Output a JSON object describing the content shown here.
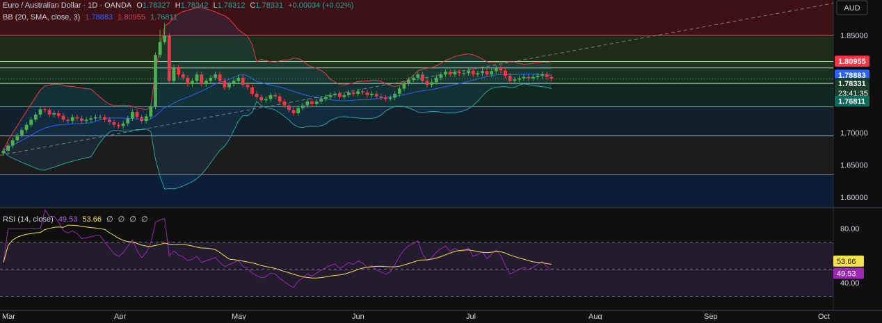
{
  "header": {
    "symbol": "Euro / Australian Dollar · 1D · OANDA",
    "open_label": "O",
    "open": "1.78327",
    "high_label": "H",
    "high": "1.78342",
    "low_label": "L",
    "low": "1.78312",
    "close_label": "C",
    "close": "1.78331",
    "change": "+0.00034 (+0.02%)"
  },
  "bb_legend": {
    "label": "BB (20, SMA, close, 3)",
    "basis": "1.78883",
    "upper": "1.80955",
    "lower": "1.76811"
  },
  "rsi_legend": {
    "label": "RSI (14, close)",
    "rsi": "49.53",
    "ma": "53.66",
    "na1": "∅",
    "na2": "∅",
    "na3": "∅",
    "na4": "∅"
  },
  "price_scale": {
    "currency": "AUD",
    "ticks": [
      "1.85000",
      "1.70000",
      "1.65000",
      "1.60000"
    ],
    "badges": {
      "upper": "1.80955",
      "basis": "1.78883",
      "close": "1.78331",
      "countdown": "23:41:35",
      "lower": "1.76811"
    }
  },
  "rsi_scale": {
    "ticks": [
      "80.00",
      "40.00"
    ],
    "badges": {
      "ma": "53.66",
      "rsi": "49.53"
    }
  },
  "time_axis": [
    "Mar",
    "Apr",
    "May",
    "Jun",
    "Jul",
    "Aug",
    "Sep",
    "Oct"
  ],
  "colors": {
    "up": "#26a69a",
    "up_body": "#4caf50",
    "down": "#f23645",
    "basis": "#2962ff",
    "upper": "#f23645",
    "lower": "#26a69a",
    "rsi": "#9c27b0",
    "rsi_ma": "#f5e24a"
  },
  "chart_data": [
    {
      "type": "candlestick",
      "title": "Euro / Australian Dollar · 1D · OANDA",
      "ylim": [
        1.585,
        1.905
      ],
      "x_range": [
        "Mar",
        "Oct"
      ],
      "closes": [
        1.672,
        1.68,
        1.688,
        1.696,
        1.704,
        1.712,
        1.72,
        1.728,
        1.736,
        1.735,
        1.728,
        1.73,
        1.726,
        1.72,
        1.718,
        1.724,
        1.722,
        1.718,
        1.72,
        1.722,
        1.724,
        1.724,
        1.72,
        1.716,
        1.712,
        1.71,
        1.714,
        1.722,
        1.732,
        1.724,
        1.718,
        1.725,
        1.74,
        1.82,
        1.84,
        1.85,
        1.78,
        1.8,
        1.79,
        1.785,
        1.775,
        1.78,
        1.79,
        1.775,
        1.78,
        1.785,
        1.79,
        1.78,
        1.77,
        1.775,
        1.78,
        1.785,
        1.774,
        1.77,
        1.76,
        1.755,
        1.75,
        1.752,
        1.758,
        1.756,
        1.748,
        1.742,
        1.735,
        1.73,
        1.738,
        1.742,
        1.748,
        1.744,
        1.748,
        1.752,
        1.755,
        1.758,
        1.76,
        1.755,
        1.758,
        1.762,
        1.76,
        1.764,
        1.762,
        1.758,
        1.76,
        1.756,
        1.754,
        1.752,
        1.754,
        1.76,
        1.768,
        1.776,
        1.782,
        1.785,
        1.79,
        1.78,
        1.774,
        1.778,
        1.785,
        1.79,
        1.794,
        1.79,
        1.794,
        1.792,
        1.792,
        1.796,
        1.79,
        1.792,
        1.795,
        1.79,
        1.795,
        1.8,
        1.796,
        1.788,
        1.78,
        1.782,
        1.784,
        1.786,
        1.784,
        1.786,
        1.788,
        1.79,
        1.786,
        1.7833
      ],
      "series": [
        {
          "name": "BB basis",
          "values_note": "SMA 20"
        },
        {
          "name": "BB upper"
        },
        {
          "name": "BB lower"
        }
      ],
      "bb_last": {
        "basis": 1.78883,
        "upper": 1.80955,
        "lower": 1.76811
      },
      "horizontal_levels": [
        1.85,
        1.81,
        1.8,
        1.776,
        1.74,
        1.695,
        1.635
      ]
    },
    {
      "type": "line",
      "title": "RSI (14, close)",
      "ylim": [
        20,
        95
      ],
      "levels": [
        70,
        50,
        30
      ],
      "series": [
        {
          "name": "RSI",
          "last": 49.53
        },
        {
          "name": "RSI MA",
          "last": 53.66
        }
      ]
    }
  ]
}
